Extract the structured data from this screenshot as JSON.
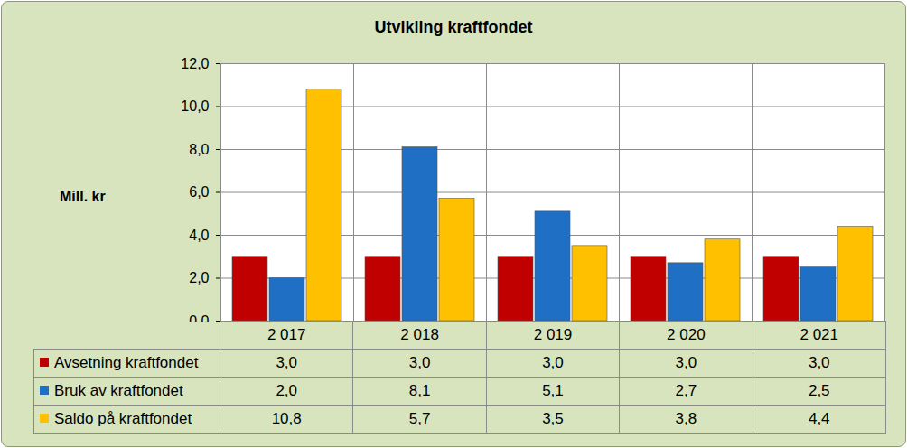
{
  "chart_data": {
    "type": "bar",
    "title": "Utvikling kraftfondet",
    "y_label": "Mill. kr",
    "categories": [
      "2 017",
      "2 018",
      "2 019",
      "2 020",
      "2 021"
    ],
    "series": [
      {
        "name": "Avsetning kraftfondet",
        "color": "#c00000",
        "values": [
          3.0,
          3.0,
          3.0,
          3.0,
          3.0
        ],
        "value_labels": [
          "3,0",
          "3,0",
          "3,0",
          "3,0",
          "3,0"
        ]
      },
      {
        "name": "Bruk av kraftfondet",
        "color": "#1f6fc5",
        "values": [
          2.0,
          8.1,
          5.1,
          2.7,
          2.5
        ],
        "value_labels": [
          "2,0",
          "8,1",
          "5,1",
          "2,7",
          "2,5"
        ]
      },
      {
        "name": "Saldo på kraftfondet",
        "color": "#ffc000",
        "values": [
          10.8,
          5.7,
          3.5,
          3.8,
          4.4
        ],
        "value_labels": [
          "10,8",
          "5,7",
          "3,5",
          "3,8",
          "4,4"
        ]
      }
    ],
    "ylim": [
      0,
      12
    ],
    "yticks": [
      {
        "value": 0,
        "label": "0,0"
      },
      {
        "value": 2,
        "label": "2,0"
      },
      {
        "value": 4,
        "label": "4,0"
      },
      {
        "value": 6,
        "label": "6,0"
      },
      {
        "value": 8,
        "label": "8,0"
      },
      {
        "value": 10,
        "label": "10,0"
      },
      {
        "value": 12,
        "label": "12,0"
      }
    ],
    "grid": true
  }
}
